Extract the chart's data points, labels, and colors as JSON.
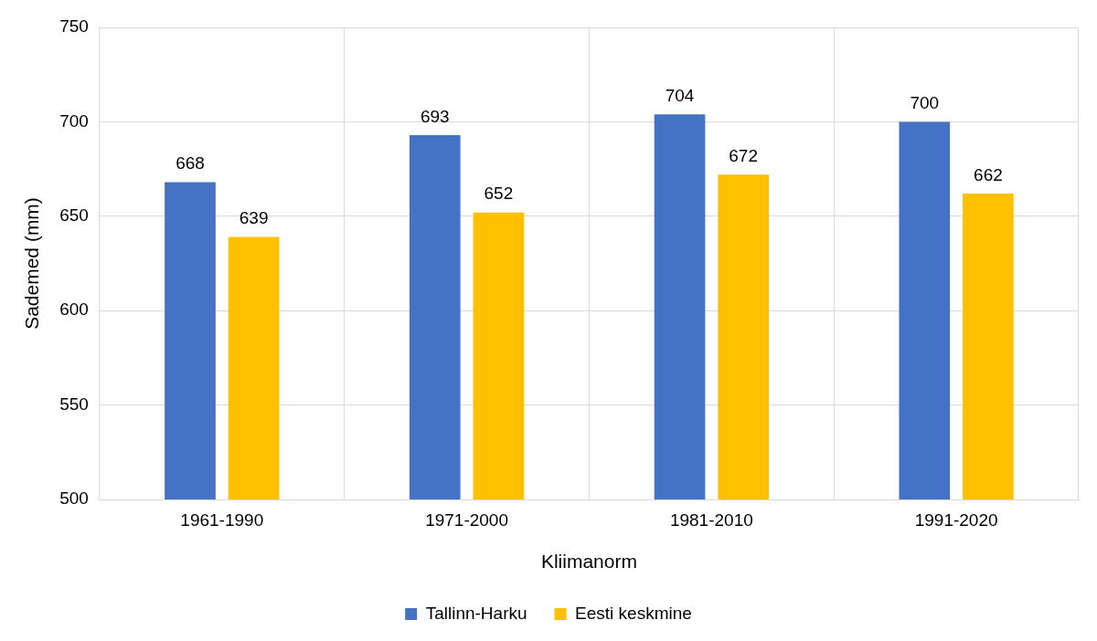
{
  "chart_data": {
    "type": "bar",
    "xlabel": "Kliimanorm",
    "ylabel": "Sademed (mm)",
    "categories": [
      "1961-1990",
      "1971-2000",
      "1981-2010",
      "1991-2020"
    ],
    "series": [
      {
        "name": "Tallinn-Harku",
        "color": "#4472c4",
        "values": [
          668,
          693,
          704,
          700
        ]
      },
      {
        "name": "Eesti keskmine",
        "color": "#ffc000",
        "values": [
          639,
          652,
          672,
          662
        ]
      }
    ],
    "ylim": [
      500,
      750
    ],
    "yticks": [
      500,
      550,
      600,
      650,
      700,
      750
    ],
    "grid": true,
    "legend": "bottom",
    "data_labels": true
  }
}
